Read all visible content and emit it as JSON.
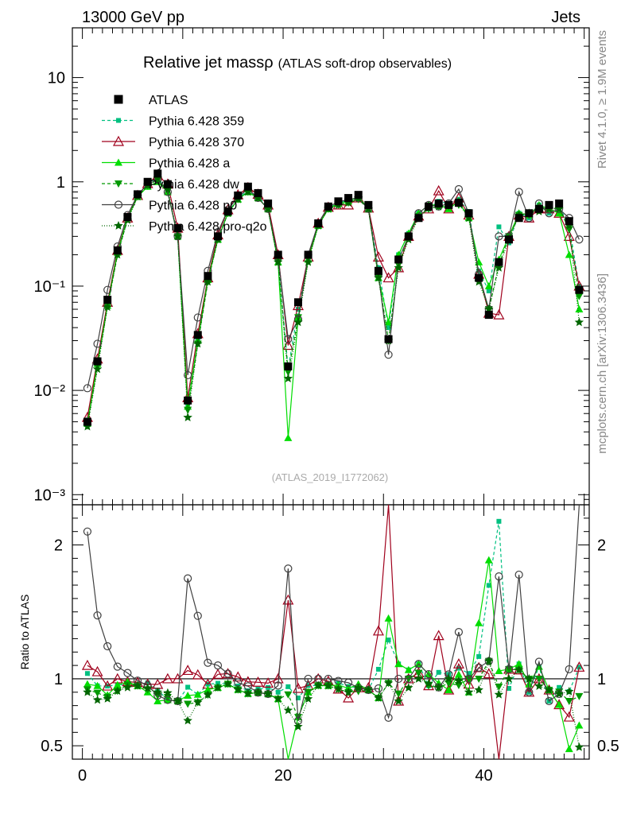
{
  "header": {
    "left": "13000 GeV pp",
    "right": "Jets"
  },
  "side_text": {
    "top": "Rivet 4.1.0, ≥ 1.9M events",
    "bottom": "mcplots.cern.ch [arXiv:1306.3436]"
  },
  "watermark": "(ATLAS_2019_I1772062)",
  "chart_data": {
    "type": "line",
    "title": "Relative jet massρ",
    "subtitle": "(ATLAS soft-drop observables)",
    "xlabel": "",
    "ylabel_main": "",
    "ylabel_ratio": "Ratio to ATLAS",
    "xlim": [
      -1,
      50.5
    ],
    "ylim_main": [
      0.0008,
      30
    ],
    "yscale_main": "log",
    "ylim_ratio": [
      0.4,
      2.3
    ],
    "x_ticks": [
      "0",
      "20",
      "40"
    ],
    "y_ticks_main": [
      "10⁻³",
      "10⁻²",
      "10⁻¹",
      "1",
      "10"
    ],
    "y_ticks_ratio": [
      "0.5",
      "1",
      "2"
    ],
    "legend_position": "top-left",
    "x": [
      0.5,
      1.5,
      2.5,
      3.5,
      4.5,
      5.5,
      6.5,
      7.5,
      8.5,
      9.5,
      10.5,
      11.5,
      12.5,
      13.5,
      14.5,
      15.5,
      16.5,
      17.5,
      18.5,
      19.5,
      20.5,
      21.5,
      22.5,
      23.5,
      24.5,
      25.5,
      26.5,
      27.5,
      28.5,
      29.5,
      30.5,
      31.5,
      32.5,
      33.5,
      34.5,
      35.5,
      36.5,
      37.5,
      38.5,
      39.5,
      40.5,
      41.5,
      42.5,
      43.5,
      44.5,
      45.5,
      46.5,
      47.5,
      48.5,
      49.5
    ],
    "series": [
      {
        "name": "ATLAS",
        "color": "#000000",
        "dash": "",
        "marker": "square",
        "values": [
          0.005,
          0.019,
          0.074,
          0.22,
          0.46,
          0.76,
          1.0,
          1.2,
          0.95,
          0.36,
          0.008,
          0.034,
          0.125,
          0.3,
          0.52,
          0.74,
          0.9,
          0.78,
          0.62,
          0.2,
          0.017,
          0.07,
          0.2,
          0.4,
          0.58,
          0.65,
          0.7,
          0.75,
          0.6,
          0.14,
          0.031,
          0.18,
          0.3,
          0.45,
          0.58,
          0.62,
          0.6,
          0.63,
          0.5,
          0.12,
          0.053,
          0.17,
          0.28,
          0.45,
          0.5,
          0.55,
          0.6,
          0.62,
          0.42,
          0.092
        ]
      },
      {
        "name": "Pythia 6.428 359",
        "color": "#00c080",
        "dash": "4,3",
        "marker": "smallsquare",
        "values": [
          0.0052,
          0.018,
          0.07,
          0.21,
          0.44,
          0.73,
          0.97,
          1.1,
          0.8,
          0.3,
          0.0075,
          0.03,
          0.12,
          0.29,
          0.5,
          0.7,
          0.82,
          0.72,
          0.58,
          0.18,
          0.016,
          0.06,
          0.19,
          0.38,
          0.56,
          0.63,
          0.66,
          0.7,
          0.55,
          0.15,
          0.04,
          0.2,
          0.32,
          0.5,
          0.55,
          0.65,
          0.62,
          0.68,
          0.52,
          0.14,
          0.09,
          0.37,
          0.26,
          0.5,
          0.45,
          0.6,
          0.5,
          0.58,
          0.38,
          0.1
        ]
      },
      {
        "name": "Pythia 6.428 370",
        "color": "#a0001c",
        "dash": "",
        "marker": "opentriangle",
        "values": [
          0.0055,
          0.02,
          0.07,
          0.22,
          0.45,
          0.74,
          0.96,
          1.15,
          0.95,
          0.36,
          0.0085,
          0.035,
          0.12,
          0.31,
          0.54,
          0.75,
          0.88,
          0.76,
          0.6,
          0.2,
          0.027,
          0.065,
          0.19,
          0.4,
          0.57,
          0.6,
          0.6,
          0.7,
          0.56,
          0.19,
          0.12,
          0.15,
          0.3,
          0.47,
          0.55,
          0.82,
          0.55,
          0.7,
          0.48,
          0.13,
          0.055,
          0.053,
          0.3,
          0.48,
          0.45,
          0.55,
          0.55,
          0.5,
          0.3,
          0.1
        ]
      },
      {
        "name": "Pythia 6.428 a",
        "color": "#00dd00",
        "dash": "",
        "marker": "triangle",
        "values": [
          0.0048,
          0.018,
          0.065,
          0.21,
          0.45,
          0.72,
          0.9,
          1.0,
          0.8,
          0.3,
          0.007,
          0.03,
          0.115,
          0.28,
          0.5,
          0.68,
          0.8,
          0.7,
          0.55,
          0.17,
          0.0035,
          0.05,
          0.18,
          0.38,
          0.55,
          0.62,
          0.65,
          0.72,
          0.55,
          0.12,
          0.045,
          0.2,
          0.32,
          0.5,
          0.6,
          0.6,
          0.55,
          0.65,
          0.45,
          0.17,
          0.1,
          0.18,
          0.3,
          0.5,
          0.48,
          0.6,
          0.55,
          0.5,
          0.2,
          0.06
        ]
      },
      {
        "name": "Pythia 6.428 dw",
        "color": "#009900",
        "dash": "4,3",
        "marker": "invtriangle",
        "values": [
          0.0046,
          0.017,
          0.064,
          0.2,
          0.44,
          0.72,
          0.92,
          1.05,
          0.82,
          0.3,
          0.0065,
          0.028,
          0.11,
          0.28,
          0.5,
          0.68,
          0.8,
          0.7,
          0.55,
          0.17,
          0.015,
          0.05,
          0.18,
          0.38,
          0.55,
          0.6,
          0.63,
          0.68,
          0.55,
          0.12,
          0.03,
          0.16,
          0.3,
          0.47,
          0.55,
          0.58,
          0.58,
          0.6,
          0.5,
          0.12,
          0.06,
          0.16,
          0.3,
          0.48,
          0.5,
          0.55,
          0.55,
          0.56,
          0.35,
          0.08
        ]
      },
      {
        "name": "Pythia 6.428 p0",
        "color": "#404040",
        "dash": "",
        "marker": "opencircle",
        "values": [
          0.0105,
          0.028,
          0.092,
          0.24,
          0.48,
          0.75,
          0.95,
          1.05,
          0.8,
          0.3,
          0.014,
          0.05,
          0.14,
          0.33,
          0.54,
          0.72,
          0.85,
          0.7,
          0.55,
          0.19,
          0.031,
          0.048,
          0.2,
          0.4,
          0.58,
          0.64,
          0.68,
          0.7,
          0.55,
          0.13,
          0.022,
          0.18,
          0.3,
          0.5,
          0.6,
          0.58,
          0.62,
          0.85,
          0.5,
          0.13,
          0.06,
          0.3,
          0.3,
          0.8,
          0.45,
          0.62,
          0.5,
          0.55,
          0.45,
          0.28
        ]
      },
      {
        "name": "Pythia 6.428 pro-q2o",
        "color": "#006600",
        "dash": "1,2",
        "marker": "star",
        "values": [
          0.0045,
          0.016,
          0.063,
          0.2,
          0.43,
          0.72,
          0.93,
          1.08,
          0.85,
          0.3,
          0.0055,
          0.028,
          0.11,
          0.28,
          0.5,
          0.68,
          0.8,
          0.7,
          0.55,
          0.17,
          0.013,
          0.045,
          0.17,
          0.38,
          0.55,
          0.6,
          0.63,
          0.7,
          0.55,
          0.12,
          0.03,
          0.15,
          0.28,
          0.45,
          0.56,
          0.58,
          0.6,
          0.62,
          0.45,
          0.11,
          0.06,
          0.15,
          0.28,
          0.48,
          0.5,
          0.52,
          0.55,
          0.55,
          0.38,
          0.045
        ]
      }
    ]
  }
}
